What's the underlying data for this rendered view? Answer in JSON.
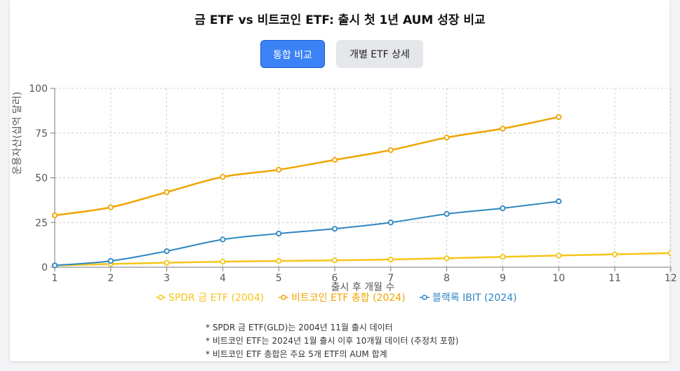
{
  "header": {
    "title": "금 ETF vs 비트코인 ETF: 출시 첫 1년 AUM 성장 비교"
  },
  "toolbar": {
    "combined_label": "통합 비교",
    "detail_label": "개별 ETF 상세"
  },
  "colors": {
    "gold": "#f5c518",
    "btc": "#f0a500",
    "ibit": "#2e86c1",
    "grid": "#d0d0d0"
  },
  "chart_data": {
    "type": "line",
    "xlabel": "출시 후 개월 수",
    "ylabel": "운용자산(십억 달러)",
    "x_ticks": [
      1,
      2,
      3,
      4,
      5,
      6,
      7,
      8,
      9,
      10,
      11,
      12
    ],
    "y_ticks": [
      0,
      25,
      50,
      75,
      100
    ],
    "xlim": [
      1,
      12
    ],
    "ylim": [
      0,
      100
    ],
    "grid": true,
    "legend_position": "bottom",
    "series": [
      {
        "name": "SPDR 금 ETF (2004)",
        "color": "#f5c518",
        "x": [
          1,
          2,
          3,
          4,
          5,
          6,
          7,
          8,
          9,
          10,
          11,
          12
        ],
        "values": [
          1.0,
          1.8,
          2.5,
          3.1,
          3.5,
          3.8,
          4.3,
          5.0,
          5.8,
          6.5,
          7.2,
          7.9
        ]
      },
      {
        "name": "비트코인 ETF 총합 (2024)",
        "color": "#f0a500",
        "x": [
          1,
          2,
          3,
          4,
          5,
          6,
          7,
          8,
          9,
          10
        ],
        "values": [
          29,
          33.5,
          42,
          50.5,
          54.5,
          60,
          65.5,
          72.5,
          77.5,
          84
        ]
      },
      {
        "name": "블랙록 IBIT (2024)",
        "color": "#2e86c1",
        "x": [
          1,
          2,
          3,
          4,
          5,
          6,
          7,
          8,
          9,
          10
        ],
        "values": [
          1.0,
          3.5,
          9.0,
          15.5,
          18.8,
          21.5,
          25.0,
          29.8,
          33.0,
          36.8
        ]
      }
    ]
  },
  "notes": [
    "* SPDR 금 ETF(GLD)는 2004년 11월 출시 데이터",
    "* 비트코인 ETF는 2024년 1월 출시 이후 10개월 데이터 (추정치 포함)",
    "* 비트코인 ETF 총합은 주요 5개 ETF의 AUM 합계"
  ]
}
